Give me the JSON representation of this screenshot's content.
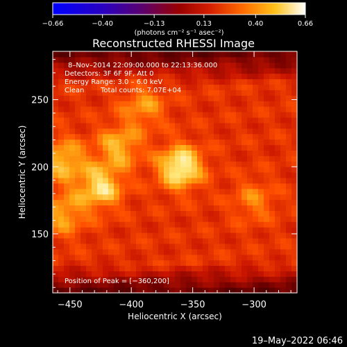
{
  "chart_data": {
    "type": "heatmap",
    "title": "Reconstructed RHESSI Image",
    "xlabel": "Heliocentric X (arcsec)",
    "ylabel": "Heliocentric Y (arcsec)",
    "x_ticks": [
      -450,
      -400,
      -350,
      -300
    ],
    "x_tick_labels": [
      "−450",
      "−400",
      "−350",
      "−300"
    ],
    "y_ticks": [
      150,
      200,
      250
    ],
    "y_tick_labels": [
      "150",
      "200",
      "250"
    ],
    "xlim": [
      -464,
      -265
    ],
    "ylim": [
      106,
      286
    ],
    "colorbar": {
      "range": [
        -0.66,
        0.66
      ],
      "ticks": [
        -0.66,
        -0.4,
        -0.13,
        0.13,
        0.4,
        0.66
      ],
      "tick_labels": [
        "−0.66",
        "−0.40",
        "−0.13",
        "0.13",
        "0.40",
        "0.66"
      ],
      "units": "(photons cm⁻² s⁻¹ asec⁻²)"
    },
    "annotations": {
      "time": "8–Nov–2014 22:09:00.000 to 22:13:36.000",
      "detectors": "Detectors: 3F 6F 9F, Att 0",
      "energy": "Energy Range: 3.0 – 6.0 keV",
      "clean": "Clean",
      "counts": "Total counts: 7.07E+04",
      "peak": "Position of Peak = [−360,200]"
    },
    "peak": [
      -360,
      200
    ],
    "sources": [
      {
        "x": -360,
        "y": 200,
        "amp": 0.66
      },
      {
        "x": -425,
        "y": 185,
        "amp": 0.55
      },
      {
        "x": -455,
        "y": 205,
        "amp": 0.48
      },
      {
        "x": -410,
        "y": 215,
        "amp": 0.45
      },
      {
        "x": -455,
        "y": 165,
        "amp": 0.42
      },
      {
        "x": -390,
        "y": 245,
        "amp": 0.38
      },
      {
        "x": -300,
        "y": 175,
        "amp": 0.33
      }
    ]
  },
  "timestamp": "19–May–2022 06:46"
}
